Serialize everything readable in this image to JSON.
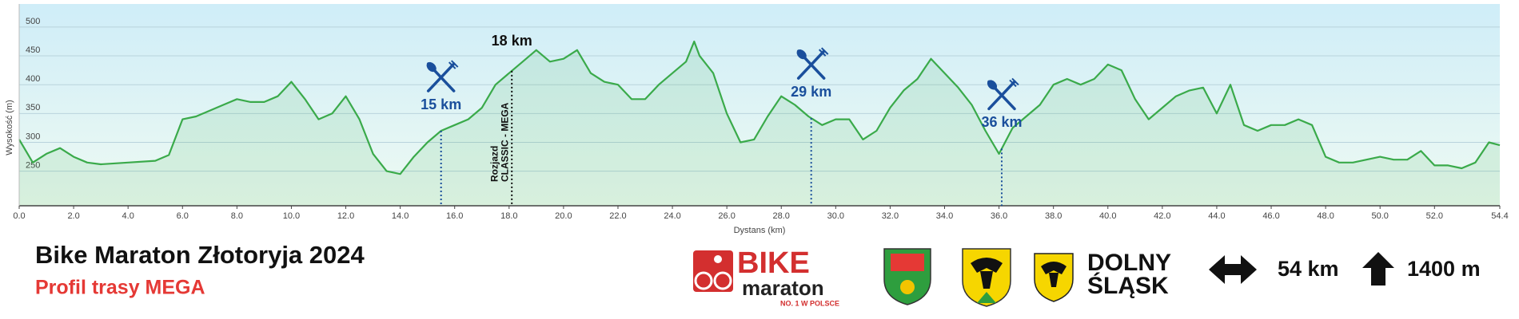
{
  "chart_data": {
    "type": "area",
    "title": "Bike Maraton Złotoryja 2024",
    "subtitle": "Profil trasy MEGA",
    "x_label": "Dystans (km)",
    "y_label": "Wysokość (m)",
    "x": [
      0,
      0.5,
      1,
      1.5,
      2,
      2.5,
      3,
      4,
      5,
      5.5,
      6,
      6.5,
      7,
      7.5,
      8,
      8.5,
      9,
      9.5,
      10,
      10.5,
      11,
      11.5,
      12,
      12.5,
      13,
      13.5,
      14,
      14.5,
      15,
      15.5,
      16,
      16.5,
      17,
      17.5,
      18,
      18.5,
      19,
      19.5,
      20,
      20.5,
      21,
      21.5,
      22,
      22.5,
      23,
      23.5,
      24,
      24.5,
      24.8,
      25,
      25.5,
      26,
      26.5,
      27,
      27.5,
      28,
      28.5,
      29,
      29.5,
      30,
      30.5,
      31,
      31.5,
      32,
      32.5,
      33,
      33.5,
      34,
      34.5,
      35,
      35.5,
      36,
      36.5,
      37,
      37.5,
      38,
      38.5,
      39,
      39.5,
      40,
      40.5,
      41,
      41.5,
      42,
      42.5,
      43,
      43.5,
      44,
      44.5,
      45,
      45.5,
      46,
      46.5,
      47,
      47.5,
      48,
      48.5,
      49,
      49.5,
      50,
      50.5,
      51,
      51.5,
      52,
      52.5,
      53,
      53.5,
      54,
      54.4
    ],
    "values": [
      305,
      265,
      280,
      290,
      275,
      265,
      262,
      265,
      268,
      278,
      340,
      345,
      355,
      365,
      375,
      370,
      370,
      380,
      405,
      375,
      340,
      350,
      380,
      340,
      280,
      250,
      245,
      275,
      300,
      320,
      330,
      340,
      360,
      400,
      420,
      440,
      460,
      440,
      445,
      460,
      420,
      405,
      400,
      375,
      375,
      400,
      420,
      440,
      475,
      450,
      420,
      350,
      300,
      305,
      345,
      380,
      365,
      345,
      330,
      340,
      340,
      305,
      320,
      360,
      390,
      410,
      445,
      420,
      395,
      365,
      320,
      280,
      325,
      345,
      365,
      400,
      410,
      400,
      410,
      435,
      425,
      375,
      340,
      360,
      380,
      390,
      395,
      350,
      400,
      330,
      320,
      330,
      330,
      340,
      330,
      275,
      265,
      265,
      270,
      275,
      270,
      270,
      285,
      260,
      260,
      255,
      265,
      300,
      295
    ],
    "color": "#3aaa4a",
    "xlim": [
      0,
      54.4
    ],
    "ylim": [
      190,
      540
    ],
    "xticks": [
      {
        "value": 0,
        "label": "0.0"
      },
      {
        "value": 2,
        "label": "2.0"
      },
      {
        "value": 4,
        "label": "4.0"
      },
      {
        "value": 6,
        "label": "6.0"
      },
      {
        "value": 8,
        "label": "8.0"
      },
      {
        "value": 10,
        "label": "10.0"
      },
      {
        "value": 12,
        "label": "12.0"
      },
      {
        "value": 14,
        "label": "14.0"
      },
      {
        "value": 16,
        "label": "16.0"
      },
      {
        "value": 18,
        "label": "18.0"
      },
      {
        "value": 20,
        "label": "20.0"
      },
      {
        "value": 22,
        "label": "22.0"
      },
      {
        "value": 24,
        "label": "24.0"
      },
      {
        "value": 26,
        "label": "26.0"
      },
      {
        "value": 28,
        "label": "28.0"
      },
      {
        "value": 30,
        "label": "30.0"
      },
      {
        "value": 32,
        "label": "32.0"
      },
      {
        "value": 34,
        "label": "34.0"
      },
      {
        "value": 36,
        "label": "36.0"
      },
      {
        "value": 38,
        "label": "38.0"
      },
      {
        "value": 40,
        "label": "40.0"
      },
      {
        "value": 42,
        "label": "42.0"
      },
      {
        "value": 44,
        "label": "44.0"
      },
      {
        "value": 46,
        "label": "46.0"
      },
      {
        "value": 48,
        "label": "48.0"
      },
      {
        "value": 50,
        "label": "50.0"
      },
      {
        "value": 52,
        "label": "52.0"
      },
      {
        "value": 54.4,
        "label": "54.4"
      }
    ],
    "yticks": [
      250,
      300,
      350,
      400,
      450,
      500
    ],
    "grid": true,
    "food_stations": [
      {
        "x": 15.5,
        "label": "15 km"
      },
      {
        "x": 29.1,
        "label": "29 km"
      },
      {
        "x": 36.1,
        "label": "36 km"
      }
    ],
    "split": {
      "x": 18.1,
      "label": "18 km",
      "note": [
        "Rozjazd",
        "CLASSIC - MEGA"
      ]
    },
    "stats": {
      "distance": "54 km",
      "climb": "1400 m"
    },
    "logos": {
      "bike": "BIKE",
      "maraton": "maraton",
      "slogan": "NO. 1 W POLSCE",
      "region": [
        "DOLNY",
        "ŚLĄSK"
      ]
    }
  }
}
